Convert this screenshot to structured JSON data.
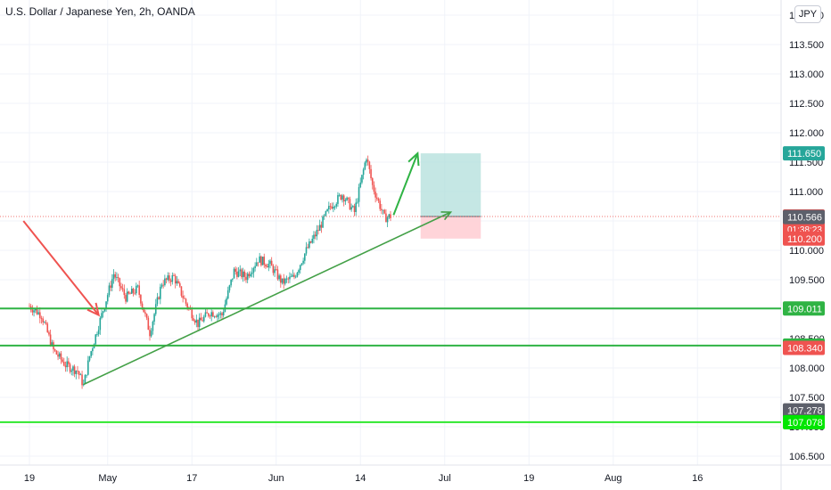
{
  "header": {
    "title": "U.S. Dollar / Japanese Yen, 2h, OANDA"
  },
  "currency_badge": "JPY",
  "colors": {
    "up": "#26a69a",
    "down": "#ef5350",
    "grid": "#f0f3fa",
    "axis_text": "#131722",
    "support_line": "#2fb344",
    "support_line_bright": "#2ee82e",
    "trend_line": "#43a047",
    "target_zone": "#b2dfdb",
    "stop_zone": "#ffcdd2",
    "arrow_red": "#ef5350",
    "price_badge_green": "#26a69a",
    "price_badge_red": "#ef5350",
    "price_badge_gray": "#5d606b",
    "line_badge_green": "#2fb344",
    "line_badge_bright": "#00e600"
  },
  "chart_data": {
    "type": "candlestick",
    "symbol": "U.S. Dollar / Japanese Yen",
    "interval": "2h",
    "source": "OANDA",
    "x_tick_labels": [
      "19",
      "May",
      "17",
      "Jun",
      "14",
      "Jul",
      "19",
      "Aug",
      "16"
    ],
    "y_ticks": [
      106.5,
      107.0,
      107.5,
      108.0,
      108.5,
      109.0,
      109.5,
      110.0,
      110.5,
      111.0,
      111.5,
      112.0,
      112.5,
      113.0,
      113.5,
      114.0
    ],
    "y_tick_labels": [
      "106.500",
      "107.000",
      "107.500",
      "108.000",
      "108.500",
      "109.000",
      "109.500",
      "110.000",
      "110.500",
      "111.000",
      "111.500",
      "112.000",
      "112.500",
      "113.000",
      "113.500",
      "114.000"
    ],
    "ylim": [
      106.3,
      114.1
    ],
    "path_anchors": [
      {
        "day": 0,
        "price": 109.05
      },
      {
        "day": 2,
        "price": 108.9
      },
      {
        "day": 4,
        "price": 108.3
      },
      {
        "day": 6,
        "price": 108.05
      },
      {
        "day": 8,
        "price": 107.95
      },
      {
        "day": 9,
        "price": 107.7
      },
      {
        "day": 10,
        "price": 108.2
      },
      {
        "day": 12,
        "price": 108.9
      },
      {
        "day": 14,
        "price": 109.6
      },
      {
        "day": 16,
        "price": 109.2
      },
      {
        "day": 18,
        "price": 109.35
      },
      {
        "day": 20,
        "price": 108.6
      },
      {
        "day": 22,
        "price": 109.45
      },
      {
        "day": 24,
        "price": 109.55
      },
      {
        "day": 26,
        "price": 109.1
      },
      {
        "day": 28,
        "price": 108.75
      },
      {
        "day": 30,
        "price": 108.95
      },
      {
        "day": 32,
        "price": 108.9
      },
      {
        "day": 34,
        "price": 109.65
      },
      {
        "day": 36,
        "price": 109.55
      },
      {
        "day": 38,
        "price": 109.85
      },
      {
        "day": 40,
        "price": 109.75
      },
      {
        "day": 42,
        "price": 109.45
      },
      {
        "day": 44,
        "price": 109.55
      },
      {
        "day": 46,
        "price": 110.0
      },
      {
        "day": 48,
        "price": 110.35
      },
      {
        "day": 50,
        "price": 110.75
      },
      {
        "day": 52,
        "price": 110.95
      },
      {
        "day": 54,
        "price": 110.65
      },
      {
        "day": 56,
        "price": 111.6
      },
      {
        "day": 57,
        "price": 111.1
      },
      {
        "day": 59,
        "price": 110.55
      },
      {
        "day": 60,
        "price": 110.58
      }
    ],
    "drawings": {
      "horizontal_lines": [
        {
          "price": 109.011,
          "label": "109.011"
        },
        {
          "price": 108.381,
          "label": "108.381"
        },
        {
          "price": 107.078,
          "label": "107.078"
        }
      ],
      "trend_line": {
        "from": {
          "day": 9,
          "price": 107.72
        },
        "to": {
          "day": 70,
          "price": 110.65
        }
      },
      "red_arrow": {
        "from": {
          "day": -1,
          "price": 110.5
        },
        "to": {
          "day": 11.5,
          "price": 108.9
        }
      },
      "green_arrow": {
        "from": {
          "day": 60.5,
          "price": 110.6
        },
        "to": {
          "day": 64.5,
          "price": 111.65
        }
      },
      "position": {
        "start_day": 65,
        "end_day": 75,
        "entry": 110.575,
        "target": 111.65,
        "stop": 110.2
      }
    },
    "price_badges": [
      {
        "price": 111.65,
        "text": "111.650",
        "kind": "green"
      },
      {
        "price": 110.575,
        "text": "110.575",
        "sub": "01:38:23",
        "kind": "red"
      },
      {
        "price": 110.566,
        "text": "110.566",
        "kind": "gray"
      },
      {
        "price": 110.2,
        "text": "110.200",
        "kind": "red"
      },
      {
        "price": 109.011,
        "text": "109.011",
        "kind": "line_green"
      },
      {
        "price": 108.381,
        "text": "108.381",
        "kind": "line_green"
      },
      {
        "price": 108.34,
        "text": "108.340",
        "kind": "red"
      },
      {
        "price": 107.278,
        "text": "107.278",
        "kind": "gray"
      },
      {
        "price": 107.078,
        "text": "107.078",
        "kind": "line_bright"
      }
    ]
  }
}
